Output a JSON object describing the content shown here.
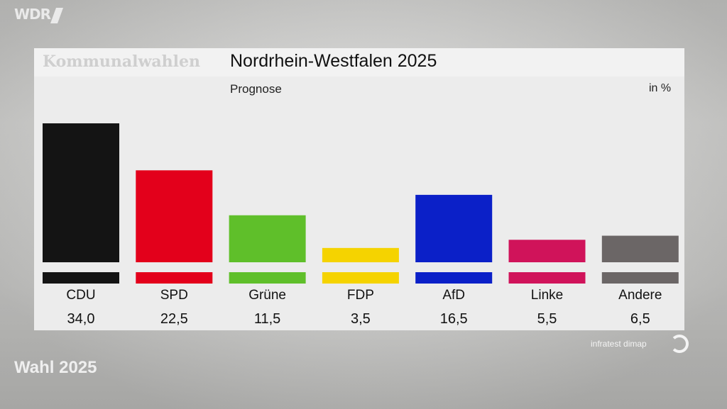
{
  "broadcaster": "WDR",
  "kicker": "Kommunalwahlen",
  "footer": "Wahl 2025",
  "source": "infratest dimap",
  "chart_data": {
    "type": "bar",
    "title": "Nordrhein-Westfalen 2025",
    "subtitle": "Prognose",
    "unit": "in %",
    "categories": [
      "CDU",
      "SPD",
      "Grüne",
      "FDP",
      "AfD",
      "Linke",
      "Andere"
    ],
    "values": [
      34.0,
      22.5,
      11.5,
      3.5,
      16.5,
      5.5,
      6.5
    ],
    "value_labels": [
      "34,0",
      "22,5",
      "11,5",
      "3,5",
      "16,5",
      "5,5",
      "6,5"
    ],
    "colors": [
      "#141414",
      "#e3001b",
      "#5fbf2a",
      "#f5d300",
      "#0b20c8",
      "#d0135a",
      "#6b6666"
    ],
    "ylim": [
      0,
      34.0
    ]
  }
}
